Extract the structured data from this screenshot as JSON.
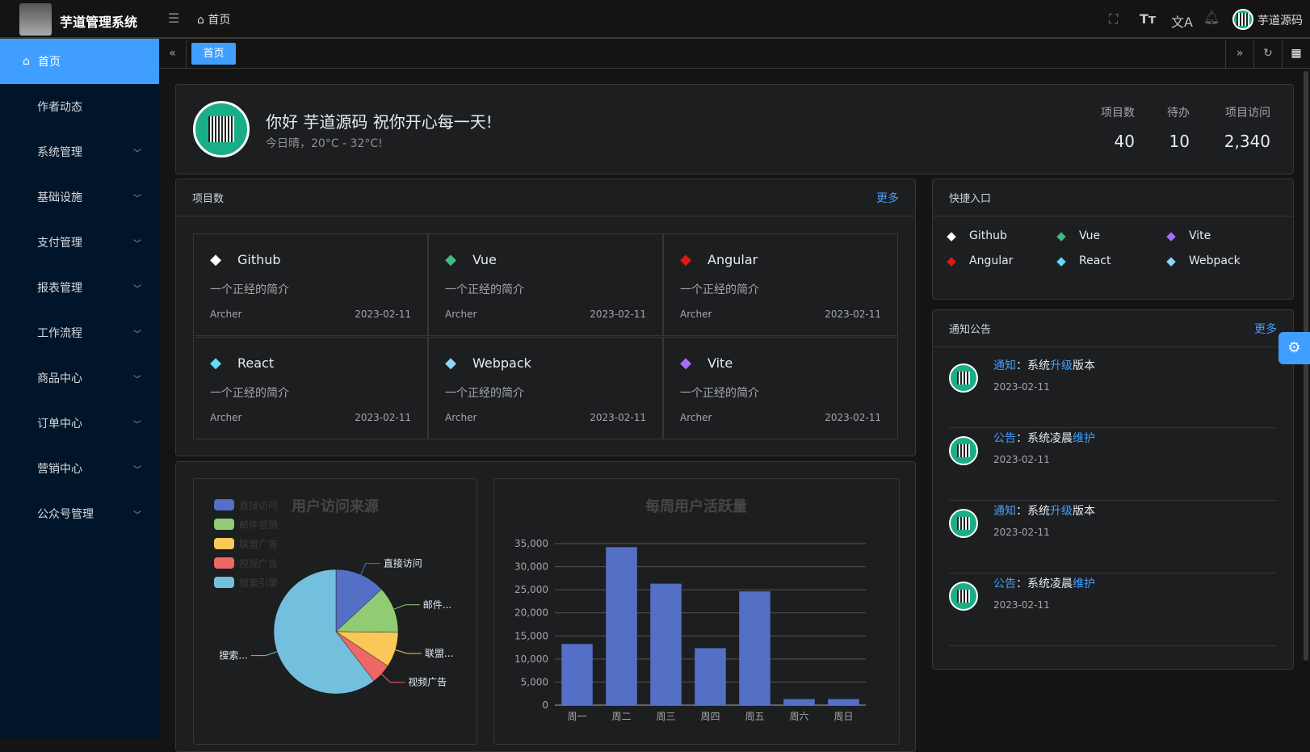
{
  "header": {
    "app_title": "芋道管理系统",
    "breadcrumb": "首页",
    "username": "芋道源码"
  },
  "sidebar": {
    "items": [
      {
        "label": "首页",
        "active": true,
        "icon": "home-icon"
      },
      {
        "label": "作者动态"
      },
      {
        "label": "系统管理",
        "expandable": true
      },
      {
        "label": "基础设施",
        "expandable": true
      },
      {
        "label": "支付管理",
        "expandable": true
      },
      {
        "label": "报表管理",
        "expandable": true
      },
      {
        "label": "工作流程",
        "expandable": true
      },
      {
        "label": "商品中心",
        "expandable": true
      },
      {
        "label": "订单中心",
        "expandable": true
      },
      {
        "label": "营销中心",
        "expandable": true
      },
      {
        "label": "公众号管理",
        "expandable": true
      }
    ]
  },
  "tabs": [
    {
      "label": "首页",
      "active": true
    }
  ],
  "welcome": {
    "greeting": "你好 芋道源码 祝你开心每一天!",
    "weather": "今日晴，20°C - 32°C!",
    "stats": [
      {
        "label": "项目数",
        "value": "40"
      },
      {
        "label": "待办",
        "value": "10"
      },
      {
        "label": "项目访问",
        "value": "2,340"
      }
    ]
  },
  "projects": {
    "title": "项目数",
    "more": "更多",
    "items": [
      {
        "name": "Github",
        "desc": "一个正经的简介",
        "author": "Archer",
        "date": "2023-02-11",
        "icon": "github-icon",
        "color": "#ffffff"
      },
      {
        "name": "Vue",
        "desc": "一个正经的简介",
        "author": "Archer",
        "date": "2023-02-11",
        "icon": "vue-icon",
        "color": "#42b883"
      },
      {
        "name": "Angular",
        "desc": "一个正经的简介",
        "author": "Archer",
        "date": "2023-02-11",
        "icon": "angular-icon",
        "color": "#dd1b16"
      },
      {
        "name": "React",
        "desc": "一个正经的简介",
        "author": "Archer",
        "date": "2023-02-11",
        "icon": "react-icon",
        "color": "#61dafb"
      },
      {
        "name": "Webpack",
        "desc": "一个正经的简介",
        "author": "Archer",
        "date": "2023-02-11",
        "icon": "webpack-icon",
        "color": "#8ed6fb"
      },
      {
        "name": "Vite",
        "desc": "一个正经的简介",
        "author": "Archer",
        "date": "2023-02-11",
        "icon": "vite-icon",
        "color": "#a66cff"
      }
    ]
  },
  "quick": {
    "title": "快捷入口",
    "items": [
      {
        "name": "Github",
        "icon": "github-icon",
        "color": "#ffffff"
      },
      {
        "name": "Vue",
        "icon": "vue-icon",
        "color": "#42b883"
      },
      {
        "name": "Vite",
        "icon": "vite-icon",
        "color": "#a66cff"
      },
      {
        "name": "Angular",
        "icon": "angular-icon",
        "color": "#dd1b16"
      },
      {
        "name": "React",
        "icon": "react-icon",
        "color": "#61dafb"
      },
      {
        "name": "Webpack",
        "icon": "webpack-icon",
        "color": "#8ed6fb"
      }
    ]
  },
  "notices": {
    "title": "通知公告",
    "more": "更多",
    "items": [
      {
        "type": "通知",
        "sep": "：",
        "pre": "系统",
        "hl": "升级",
        "post": "版本",
        "date": "2023-02-11"
      },
      {
        "type": "公告",
        "sep": "：",
        "pre": "系统凌晨",
        "hl": "维护",
        "post": "",
        "date": "2023-02-11"
      },
      {
        "type": "通知",
        "sep": "：",
        "pre": "系统",
        "hl": "升级",
        "post": "版本",
        "date": "2023-02-11"
      },
      {
        "type": "公告",
        "sep": "：",
        "pre": "系统凌晨",
        "hl": "维护",
        "post": "",
        "date": "2023-02-11"
      }
    ]
  },
  "accent": "#409eff",
  "chart_data": [
    {
      "type": "pie",
      "title": "用户访问来源",
      "legend": "top-left",
      "categories": [
        "直接访问",
        "邮件营销",
        "联盟广告",
        "视频广告",
        "搜索引擎"
      ],
      "slice_labels": [
        "直接访问",
        "邮件...",
        "联盟...",
        "视频广告",
        "搜索..."
      ],
      "values": [
        335,
        310,
        234,
        135,
        1548
      ],
      "colors": [
        "#5470c6",
        "#91cc75",
        "#fac858",
        "#ee6666",
        "#73c0de"
      ]
    },
    {
      "type": "bar",
      "title": "每周用户活跃量",
      "categories": [
        "周一",
        "周二",
        "周三",
        "周四",
        "周五",
        "周六",
        "周日"
      ],
      "values": [
        13253,
        34235,
        26321,
        12340,
        24643,
        1322,
        1324
      ],
      "ylim": [
        0,
        35000
      ],
      "yticks": [
        "0",
        "5,000",
        "10,000",
        "15,000",
        "20,000",
        "25,000",
        "30,000",
        "35,000"
      ],
      "grid": true,
      "color": "#5470c6"
    }
  ]
}
